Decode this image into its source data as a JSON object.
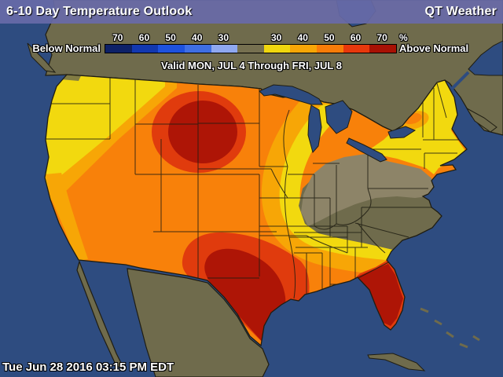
{
  "header": {
    "title": "6-10 Day Temperature Outlook",
    "brand": "QT Weather"
  },
  "legend": {
    "below_label": "Below Normal",
    "above_label": "Above Normal",
    "percent_label": "%",
    "below_ticks": [
      "70",
      "60",
      "50",
      "40",
      "30"
    ],
    "above_ticks": [
      "30",
      "40",
      "50",
      "60",
      "70"
    ],
    "segments": [
      "#0d2168",
      "#1238b0",
      "#1e52de",
      "#3f6fe4",
      "#8fa8f0",
      "#767050",
      "#f0d70e",
      "#f7a606",
      "#f87c08",
      "#e8380c",
      "#a81104"
    ]
  },
  "valid_text": "Valid MON, JUL 4 Through FRI, JUL 8",
  "timestamp": "Tue Jun 28 2016 03:15 PM EDT",
  "map": {
    "colors": {
      "ocean": "#2e4c80",
      "land": "#6f6b4c",
      "gray-band": "#8d8468",
      "yellow": "#f2d90f",
      "amber": "#f7a606",
      "orange": "#f8810a",
      "red-orange": "#e03b0d",
      "dark-red": "#ae1506",
      "line": "#1f1d12"
    }
  }
}
